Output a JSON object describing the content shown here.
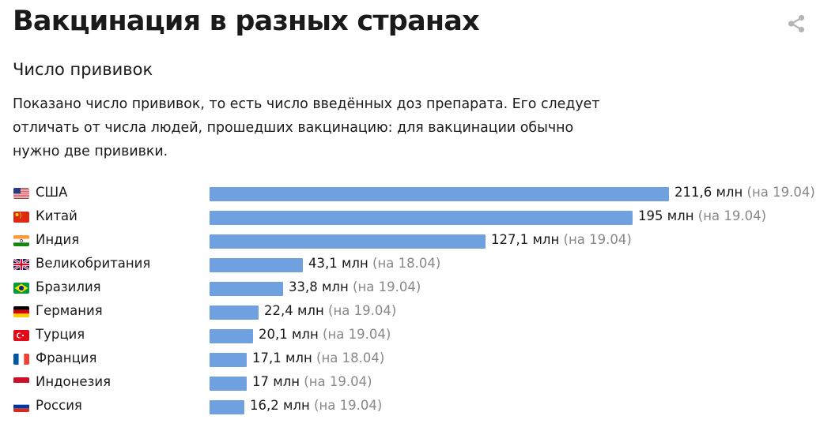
{
  "header": {
    "title": "Вакцинация в разных странах",
    "subtitle": "Число прививок",
    "description": [
      "Показано число прививок, то есть число введённых доз препарата. Его следует",
      "отличать от числа людей, прошедших вакцинацию: для вакцинации обычно",
      "нужно две прививки."
    ]
  },
  "colors": {
    "bar": "#6fa0e0",
    "text": "#1a1a1a",
    "date": "#888888"
  },
  "icons": {
    "share": "share-icon"
  },
  "chart_data": {
    "type": "bar",
    "orientation": "horizontal",
    "categories": [
      "США",
      "Китай",
      "Индия",
      "Великобритания",
      "Бразилия",
      "Германия",
      "Турция",
      "Франция",
      "Индонезия",
      "Россия"
    ],
    "flags": [
      "us",
      "cn",
      "in",
      "gb",
      "br",
      "de",
      "tr",
      "fr",
      "id",
      "ru"
    ],
    "values": [
      211.6,
      195,
      127.1,
      43.1,
      33.8,
      22.4,
      20.1,
      17.1,
      17,
      16.2
    ],
    "labels": [
      "211,6 млн",
      "195 млн",
      "127,1 млн",
      "43,1 млн",
      "33,8 млн",
      "22,4 млн",
      "20,1 млн",
      "17,1 млн",
      "17 млн",
      "16,2 млн"
    ],
    "dates": [
      "(на 19.04)",
      "(на 19.04)",
      "(на 19.04)",
      "(на 18.04)",
      "(на 19.04)",
      "(на 19.04)",
      "(на 19.04)",
      "(на 18.04)",
      "(на 19.04)",
      "(на 19.04)"
    ],
    "title": "Число прививок",
    "xlabel": "",
    "ylabel": "",
    "grid": false,
    "legend": "none"
  }
}
